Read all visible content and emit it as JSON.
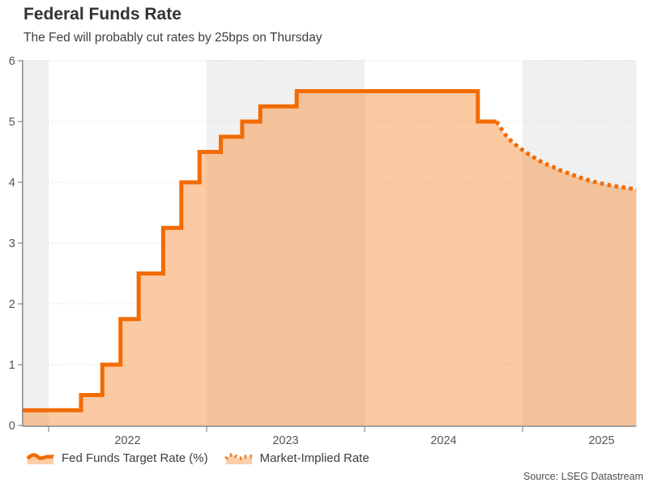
{
  "header": {
    "title": "Federal Funds Rate",
    "subtitle": "The Fed will probably cut rates by 25bps on Thursday"
  },
  "legend": {
    "items": [
      {
        "label": "Fed Funds Target Rate (%)",
        "style": "solid"
      },
      {
        "label": "Market-Implied Rate",
        "style": "dotted"
      }
    ]
  },
  "source_text": "Source: LSEG Datastream",
  "colors": {
    "line": "#f26b05",
    "area_fill": "rgba(246,136,48,0.45)",
    "legend_fill": "#fbcda8",
    "band": "#f0f0f0",
    "grid": "#d9d9d9",
    "axis": "#8a8a8a",
    "tick_text": "#555555"
  },
  "chart_data": {
    "type": "area",
    "title": "Federal Funds Rate",
    "xlabel": "",
    "ylabel": "",
    "x_ticks": [
      "2022",
      "2023",
      "2024",
      "2025"
    ],
    "x_tick_positions": [
      2022.5,
      2023.5,
      2024.5,
      2025.5
    ],
    "x_tick_marks": [
      2022,
      2023,
      2024,
      2025
    ],
    "y_ticks": [
      0,
      1,
      2,
      3,
      4,
      5,
      6
    ],
    "ylim": [
      0,
      6
    ],
    "xlim": [
      2021.835,
      2025.72
    ],
    "gray_bands": [
      [
        2021.835,
        2022
      ],
      [
        2023,
        2024
      ],
      [
        2025,
        2025.72
      ]
    ],
    "grid": true,
    "legend_position": "bottom",
    "series": [
      {
        "name": "Fed Funds Target Rate (%)",
        "style": "step-solid",
        "points": [
          [
            2021.835,
            0.25
          ],
          [
            2022.205,
            0.5
          ],
          [
            2022.34,
            1.0
          ],
          [
            2022.455,
            1.75
          ],
          [
            2022.57,
            2.5
          ],
          [
            2022.725,
            3.25
          ],
          [
            2022.84,
            4.0
          ],
          [
            2022.955,
            4.5
          ],
          [
            2023.09,
            4.75
          ],
          [
            2023.225,
            5.0
          ],
          [
            2023.34,
            5.25
          ],
          [
            2023.57,
            5.5
          ],
          [
            2024.717,
            5.0
          ],
          [
            2024.835,
            5.0
          ]
        ]
      },
      {
        "name": "Market-Implied Rate",
        "style": "dotted",
        "points": [
          [
            2024.835,
            5.0
          ],
          [
            2024.885,
            4.8
          ],
          [
            2024.935,
            4.66
          ],
          [
            2024.99,
            4.55
          ],
          [
            2025.04,
            4.46
          ],
          [
            2025.09,
            4.38
          ],
          [
            2025.14,
            4.31
          ],
          [
            2025.195,
            4.25
          ],
          [
            2025.245,
            4.19
          ],
          [
            2025.3,
            4.14
          ],
          [
            2025.35,
            4.09
          ],
          [
            2025.4,
            4.05
          ],
          [
            2025.45,
            4.01
          ],
          [
            2025.5,
            3.98
          ],
          [
            2025.555,
            3.95
          ],
          [
            2025.605,
            3.93
          ],
          [
            2025.655,
            3.91
          ],
          [
            2025.72,
            3.88
          ]
        ]
      }
    ]
  }
}
